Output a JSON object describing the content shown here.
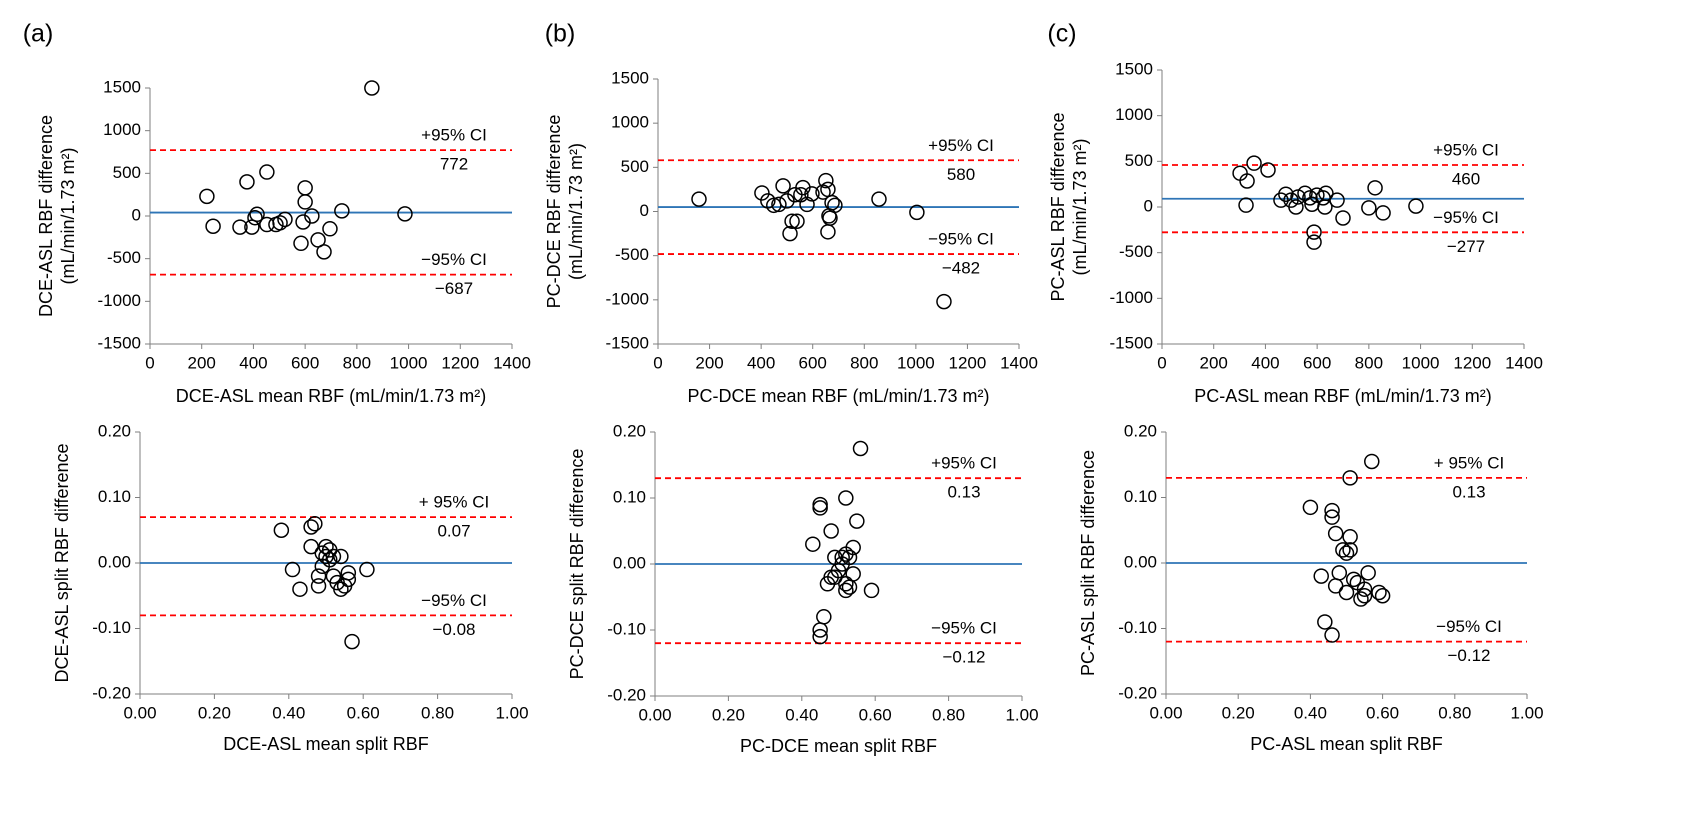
{
  "chart_data": [
    {
      "type": "scatter",
      "panel": "(a)",
      "x_label": "DCE-ASL mean RBF (mL/min/1.73 m²)",
      "y_label": [
        "DCE-ASL RBF difference",
        "(mL/min/1.73 m²)"
      ],
      "xlim": [
        0,
        1400
      ],
      "ylim": [
        -1500,
        1500
      ],
      "xticks": [
        0,
        200,
        400,
        600,
        800,
        1000,
        1200,
        1400
      ],
      "yticks": [
        -1500,
        -1000,
        -500,
        0,
        500,
        1000,
        1500
      ],
      "marker_color": "#000000",
      "x": [
        220,
        244,
        375,
        348,
        394,
        406,
        414,
        452,
        452,
        487,
        503,
        522,
        600,
        600,
        592,
        584,
        626,
        650,
        673,
        696,
        742,
        858,
        986
      ],
      "values": [
        230,
        -120,
        400,
        -130,
        -130,
        -20,
        20,
        515,
        -100,
        -100,
        -80,
        -40,
        330,
        165,
        -70,
        -320,
        0,
        -280,
        -420,
        -150,
        60,
        1500,
        25
      ],
      "reference_lines": [
        {
          "value": 40,
          "color": "#2e75b6",
          "dashed": false
        },
        {
          "value": 772,
          "label": "+95% CI",
          "color": "#ff0000",
          "dashed": true
        },
        {
          "value": -687,
          "value_label": "−687",
          "label": "−95% CI",
          "color": "#ff0000",
          "dashed": true
        }
      ]
    },
    {
      "type": "scatter",
      "panel": "(b)",
      "x_label": "PC-DCE mean RBF (mL/min/1.73 m²)",
      "y_label": [
        "PC-DCE RBF difference",
        "(mL/min/1.73 m²)"
      ],
      "xlim": [
        0,
        1400
      ],
      "ylim": [
        -1500,
        1500
      ],
      "xticks": [
        0,
        200,
        400,
        600,
        800,
        1000,
        1200,
        1400
      ],
      "yticks": [
        -1500,
        -1000,
        -500,
        0,
        500,
        1000,
        1500
      ],
      "marker_color": "#000000",
      "x": [
        159,
        403,
        426,
        449,
        469,
        485,
        500,
        531,
        520,
        512,
        539,
        554,
        562,
        597,
        578,
        640,
        651,
        659,
        675,
        663,
        667,
        659,
        686,
        857,
        1004,
        1109
      ],
      "values": [
        140,
        210,
        120,
        70,
        80,
        290,
        120,
        190,
        -110,
        -250,
        -110,
        190,
        270,
        200,
        80,
        220,
        350,
        250,
        100,
        -50,
        -75,
        -230,
        70,
        140,
        -10,
        -1020
      ],
      "reference_lines": [
        {
          "value": 50,
          "color": "#2e75b6",
          "dashed": false
        },
        {
          "value": 580,
          "label": "+95% CI",
          "color": "#ff0000",
          "dashed": true
        },
        {
          "value": -482,
          "value_label": "−482",
          "label": "−95% CI",
          "color": "#ff0000",
          "dashed": true
        }
      ]
    },
    {
      "type": "scatter",
      "panel": "(c)",
      "x_label": "PC-ASL mean RBF (mL/min/1.73 m²)",
      "y_label": [
        "PC-ASL RBF difference",
        "(mL/min/1.73 m²)"
      ],
      "xlim": [
        0,
        1400
      ],
      "ylim": [
        -1500,
        1500
      ],
      "xticks": [
        0,
        200,
        400,
        600,
        800,
        1000,
        1200,
        1400
      ],
      "yticks": [
        -1500,
        -1000,
        -500,
        0,
        500,
        1000,
        1500
      ],
      "marker_color": "#000000",
      "x": [
        302,
        329,
        325,
        356,
        410,
        460,
        479,
        499,
        526,
        518,
        553,
        572,
        580,
        588,
        588,
        599,
        634,
        630,
        677,
        700,
        800,
        824,
        855,
        982,
        623
      ],
      "values": [
        370,
        285,
        20,
        480,
        405,
        75,
        140,
        75,
        110,
        0,
        150,
        100,
        30,
        -275,
        -385,
        130,
        150,
        0,
        75,
        -120,
        -10,
        210,
        -65,
        10,
        100
      ],
      "reference_lines": [
        {
          "value": 90,
          "color": "#2e75b6",
          "dashed": false
        },
        {
          "value": 460,
          "label": "+95% CI",
          "color": "#ff0000",
          "dashed": true
        },
        {
          "value": -277,
          "value_label": "−277",
          "label": "−95% CI",
          "color": "#ff0000",
          "dashed": true
        }
      ]
    },
    {
      "type": "scatter",
      "x_label": "DCE-ASL mean split RBF",
      "y_label": [
        "DCE-ASL split RBF difference"
      ],
      "xlim": [
        0,
        1
      ],
      "ylim": [
        -0.2,
        0.2
      ],
      "xticks": [
        {
          "value": 0,
          "label": "0.00"
        },
        {
          "value": 0.2,
          "label": "0.20"
        },
        {
          "value": 0.4,
          "label": "0.40"
        },
        {
          "value": 0.6,
          "label": "0.60"
        },
        {
          "value": 0.8,
          "label": "0.80"
        },
        {
          "value": 1,
          "label": "1.00"
        }
      ],
      "yticks": [
        {
          "value": -0.2,
          "label": "-0.20"
        },
        {
          "value": -0.1,
          "label": "-0.10"
        },
        {
          "value": 0,
          "label": "0.00"
        },
        {
          "value": 0.1,
          "label": "0.10"
        },
        {
          "value": 0.2,
          "label": "0.20"
        }
      ],
      "marker_color": "#000000",
      "x": [
        0.38,
        0.41,
        0.43,
        0.46,
        0.47,
        0.46,
        0.48,
        0.48,
        0.49,
        0.49,
        0.5,
        0.5,
        0.51,
        0.51,
        0.52,
        0.52,
        0.53,
        0.54,
        0.54,
        0.55,
        0.56,
        0.56,
        0.57,
        0.61
      ],
      "values": [
        0.05,
        -0.01,
        -0.04,
        0.055,
        0.06,
        0.025,
        -0.035,
        -0.02,
        -0.005,
        0.015,
        0.025,
        0.01,
        0.02,
        0.005,
        -0.02,
        0.01,
        -0.03,
        0.01,
        -0.04,
        -0.035,
        -0.025,
        -0.015,
        -0.12,
        -0.01
      ],
      "reference_lines": [
        {
          "value": 0,
          "color": "#2e75b6",
          "dashed": false
        },
        {
          "value": 0.07,
          "label": "+ 95% CI",
          "color": "#ff0000",
          "dashed": true
        },
        {
          "value": -0.08,
          "value_label": "−0.08",
          "label": "−95% CI",
          "color": "#ff0000",
          "dashed": true
        }
      ]
    },
    {
      "type": "scatter",
      "x_label": "PC-DCE mean split RBF",
      "y_label": [
        "PC-DCE split RBF difference"
      ],
      "xlim": [
        0,
        1
      ],
      "ylim": [
        -0.2,
        0.2
      ],
      "xticks": [
        {
          "value": 0,
          "label": "0.00"
        },
        {
          "value": 0.2,
          "label": "0.20"
        },
        {
          "value": 0.4,
          "label": "0.40"
        },
        {
          "value": 0.6,
          "label": "0.60"
        },
        {
          "value": 0.8,
          "label": "0.80"
        },
        {
          "value": 1,
          "label": "1.00"
        }
      ],
      "yticks": [
        {
          "value": -0.2,
          "label": "-0.20"
        },
        {
          "value": -0.1,
          "label": "-0.10"
        },
        {
          "value": 0,
          "label": "0.00"
        },
        {
          "value": 0.1,
          "label": "0.10"
        },
        {
          "value": 0.2,
          "label": "0.20"
        }
      ],
      "marker_color": "#000000",
      "x": [
        0.43,
        0.45,
        0.45,
        0.45,
        0.45,
        0.46,
        0.47,
        0.48,
        0.48,
        0.49,
        0.49,
        0.5,
        0.51,
        0.51,
        0.52,
        0.52,
        0.52,
        0.52,
        0.53,
        0.53,
        0.54,
        0.54,
        0.55,
        0.56,
        0.59
      ],
      "values": [
        0.03,
        0.09,
        0.085,
        -0.11,
        -0.1,
        -0.08,
        -0.03,
        0.05,
        -0.02,
        0.01,
        -0.02,
        -0.01,
        0.01,
        0,
        0.1,
        0.015,
        -0.03,
        -0.04,
        0.01,
        -0.035,
        0.025,
        -0.015,
        0.065,
        0.175,
        -0.04
      ],
      "reference_lines": [
        {
          "value": 0,
          "color": "#2e75b6",
          "dashed": false
        },
        {
          "value": 0.13,
          "label": "+95% CI",
          "color": "#ff0000",
          "dashed": true
        },
        {
          "value": -0.12,
          "value_label": "−0.12",
          "label": "−95% CI",
          "color": "#ff0000",
          "dashed": true
        }
      ]
    },
    {
      "type": "scatter",
      "x_label": "PC-ASL mean split RBF",
      "y_label": [
        "PC-ASL split RBF difference"
      ],
      "xlim": [
        0,
        1
      ],
      "ylim": [
        -0.2,
        0.2
      ],
      "xticks": [
        {
          "value": 0,
          "label": "0.00"
        },
        {
          "value": 0.2,
          "label": "0.20"
        },
        {
          "value": 0.4,
          "label": "0.40"
        },
        {
          "value": 0.6,
          "label": "0.60"
        },
        {
          "value": 0.8,
          "label": "0.80"
        },
        {
          "value": 1,
          "label": "1.00"
        }
      ],
      "yticks": [
        {
          "value": -0.2,
          "label": "-0.20"
        },
        {
          "value": -0.1,
          "label": "-0.10"
        },
        {
          "value": 0,
          "label": "0.00"
        },
        {
          "value": 0.1,
          "label": "0.10"
        },
        {
          "value": 0.2,
          "label": "0.20"
        }
      ],
      "marker_color": "#000000",
      "x": [
        0.4,
        0.43,
        0.44,
        0.46,
        0.46,
        0.46,
        0.47,
        0.47,
        0.48,
        0.49,
        0.5,
        0.5,
        0.51,
        0.51,
        0.51,
        0.52,
        0.53,
        0.54,
        0.55,
        0.55,
        0.56,
        0.57,
        0.59,
        0.6
      ],
      "values": [
        0.085,
        -0.02,
        -0.09,
        0.08,
        0.07,
        -0.11,
        0.045,
        -0.035,
        -0.015,
        0.02,
        0.015,
        -0.045,
        0.13,
        0.04,
        0.02,
        -0.025,
        -0.03,
        -0.055,
        -0.04,
        -0.05,
        -0.015,
        0.155,
        -0.045,
        -0.05
      ],
      "reference_lines": [
        {
          "value": 0,
          "color": "#2e75b6",
          "dashed": false
        },
        {
          "value": 0.13,
          "label": "+ 95% CI",
          "color": "#ff0000",
          "dashed": true
        },
        {
          "value": -0.12,
          "value_label": "−0.12",
          "label": "−95% CI",
          "color": "#ff0000",
          "dashed": true
        }
      ]
    }
  ]
}
